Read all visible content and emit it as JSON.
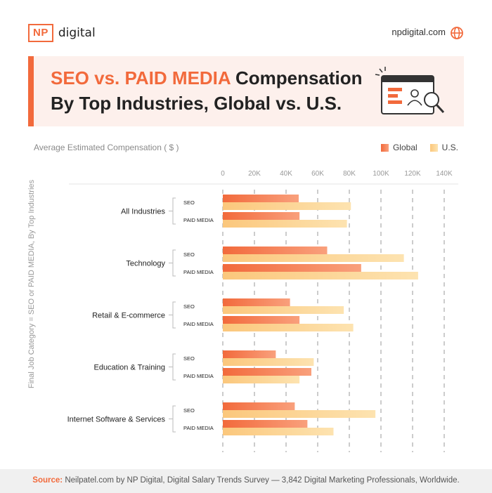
{
  "header": {
    "logo_badge": "NP",
    "logo_text": "digital",
    "site": "npdigital.com"
  },
  "banner": {
    "title_highlight": "SEO vs. PAID MEDIA",
    "title_rest": "Compensation",
    "title_line2": "By Top Industries, Global vs. U.S."
  },
  "colors": {
    "accent": "#f26a3c",
    "global": "#f47a4c",
    "us": "#fcd48a"
  },
  "chart_data": {
    "type": "bar",
    "orientation": "horizontal",
    "title": "Average Estimated Compensation ( $ )",
    "ylabel": "Final Job Category = SEO or PAID MEDIA, By Top Industries",
    "xlim": [
      0,
      140000
    ],
    "x_ticks": [
      "0",
      "20K",
      "40K",
      "60K",
      "80K",
      "100K",
      "120K",
      "140K"
    ],
    "legend": [
      "Global",
      "U.S."
    ],
    "legend_position": "top-right",
    "groups": [
      {
        "industry": "All Industries",
        "rows": [
          {
            "category": "SEO",
            "global": 48000,
            "us": 81000
          },
          {
            "category": "PAID MEDIA",
            "global": 48500,
            "us": 78500
          }
        ]
      },
      {
        "industry": "Technology",
        "rows": [
          {
            "category": "SEO",
            "global": 66000,
            "us": 114500
          },
          {
            "category": "PAID MEDIA",
            "global": 87500,
            "us": 123500
          }
        ]
      },
      {
        "industry": "Retail & E-commerce",
        "rows": [
          {
            "category": "SEO",
            "global": 42500,
            "us": 76500
          },
          {
            "category": "PAID MEDIA",
            "global": 48500,
            "us": 82500
          }
        ]
      },
      {
        "industry": "Education & Training",
        "rows": [
          {
            "category": "SEO",
            "global": 33500,
            "us": 57500
          },
          {
            "category": "PAID MEDIA",
            "global": 56000,
            "us": 48500
          }
        ]
      },
      {
        "industry": "Internet Software & Services",
        "rows": [
          {
            "category": "SEO",
            "global": 45500,
            "us": 96500
          },
          {
            "category": "PAID MEDIA",
            "global": 53500,
            "us": 70000
          }
        ]
      }
    ]
  },
  "source": {
    "label": "Source:",
    "text": "Neilpatel.com by NP Digital, Digital Salary Trends Survey — 3,842 Digital Marketing Professionals, Worldwide."
  }
}
